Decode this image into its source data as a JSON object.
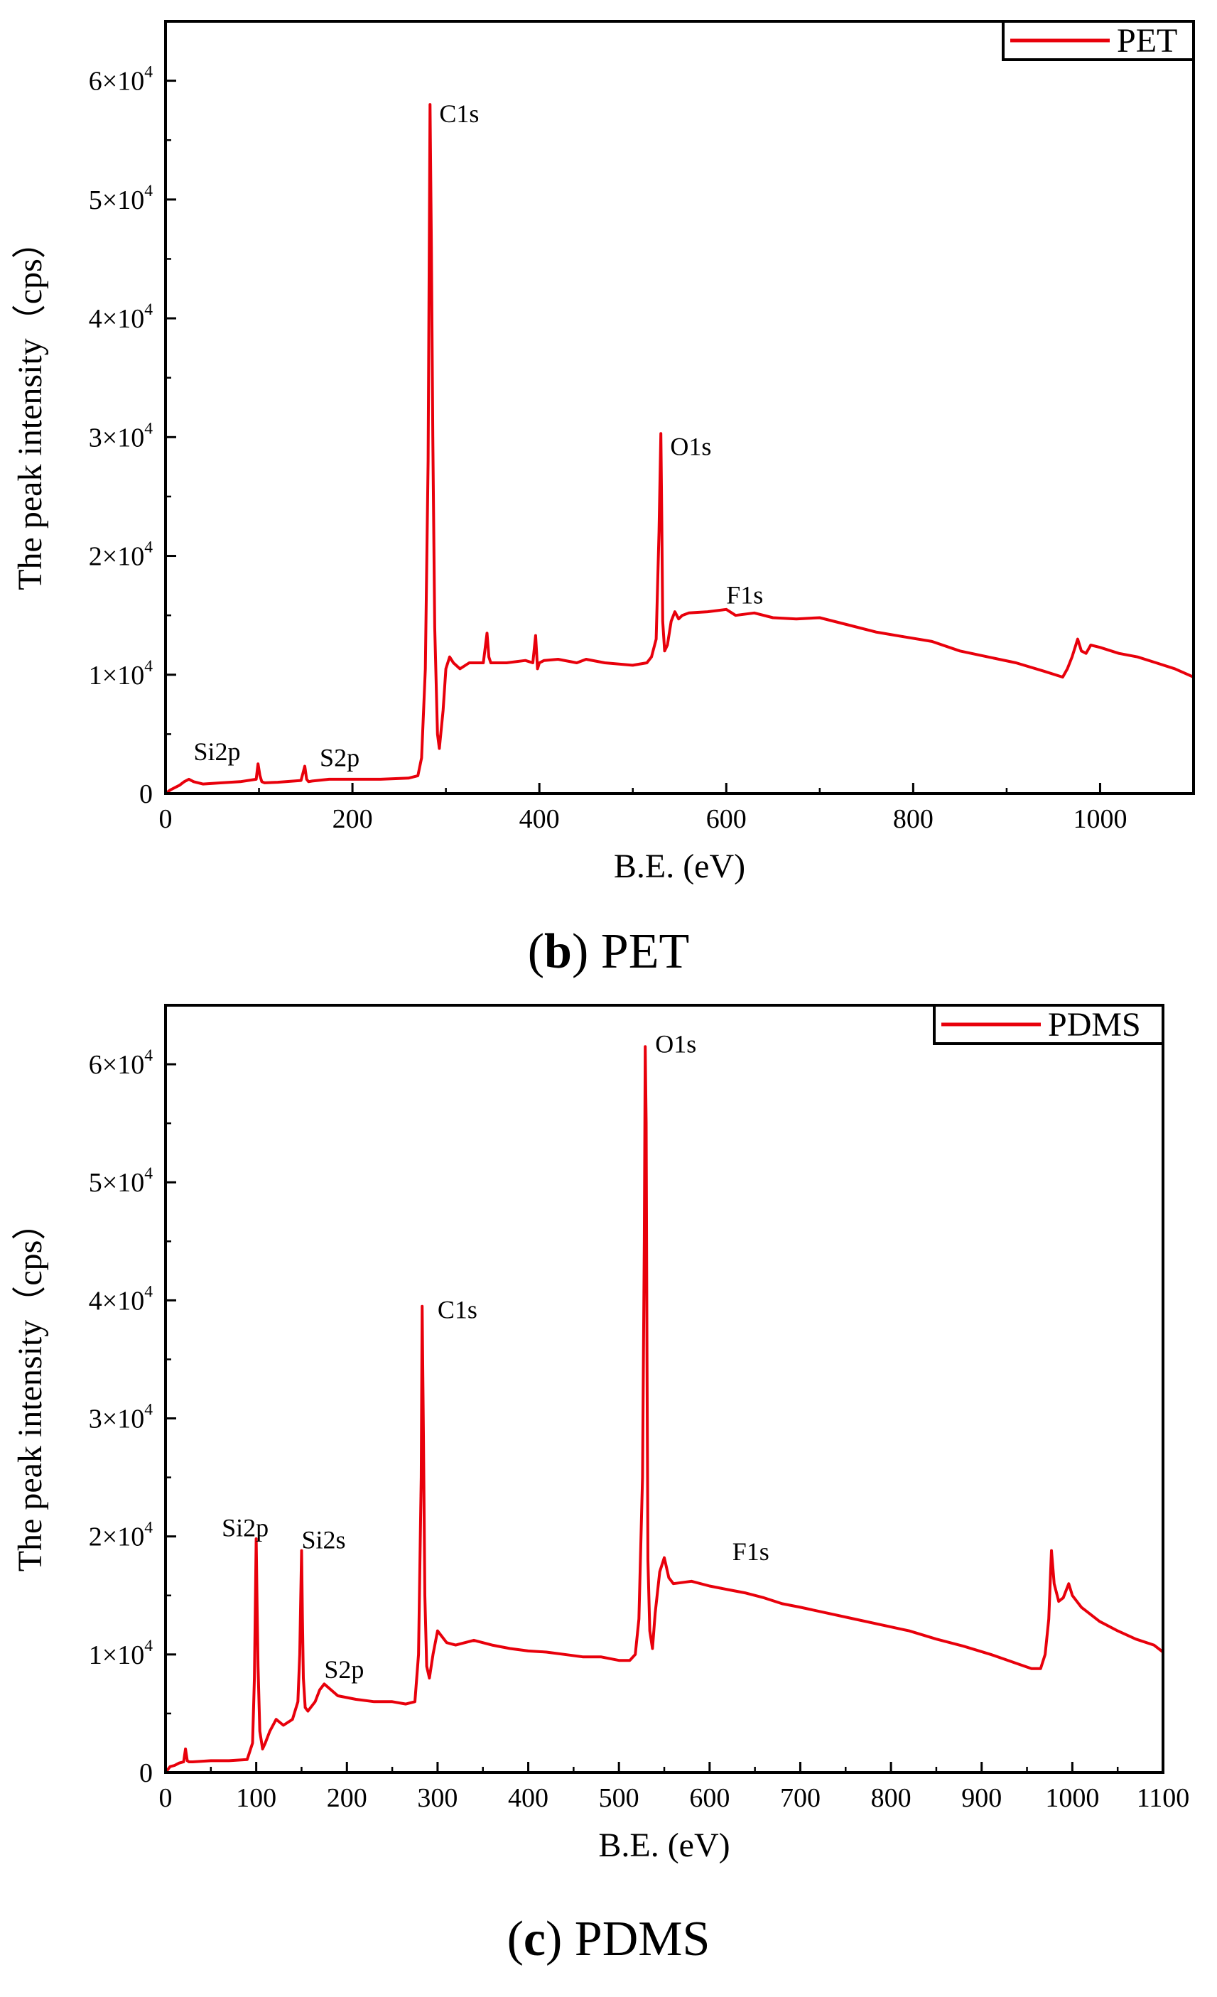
{
  "chart_data": [
    {
      "type": "line",
      "title": "",
      "xlabel": "B.E. (eV)",
      "ylabel": "The peak intensity（cps）",
      "xlim": [
        0,
        1100
      ],
      "ylim": [
        0,
        65000
      ],
      "xticks": [
        0,
        200,
        400,
        600,
        800,
        1000
      ],
      "xtick_labels": [
        "0",
        "200",
        "400",
        "600",
        "800",
        "1000"
      ],
      "yticks": [
        0,
        10000,
        20000,
        30000,
        40000,
        50000,
        60000
      ],
      "ytick_labels": [
        {
          "mant": "0",
          "exp": ""
        },
        {
          "mant": "1×10",
          "exp": "4"
        },
        {
          "mant": "2×10",
          "exp": "4"
        },
        {
          "mant": "3×10",
          "exp": "4"
        },
        {
          "mant": "4×10",
          "exp": "4"
        },
        {
          "mant": "5×10",
          "exp": "4"
        },
        {
          "mant": "6×10",
          "exp": "4"
        }
      ],
      "legend": {
        "label": "PET",
        "position": "top-right"
      },
      "color": "#e8000b",
      "caption": {
        "letter": "b",
        "text": "PET"
      },
      "annotations": [
        {
          "text": "C1s",
          "x": 293,
          "y": 56500
        },
        {
          "text": "O1s",
          "x": 540,
          "y": 28500
        },
        {
          "text": "F1s",
          "x": 600,
          "y": 16000
        },
        {
          "text": "Si2p",
          "x": 30,
          "y": 2800
        },
        {
          "text": "S2p",
          "x": 165,
          "y": 2300
        }
      ],
      "series": [
        {
          "name": "PET",
          "x": [
            0,
            5,
            15,
            20,
            25,
            30,
            40,
            60,
            80,
            97,
            99,
            101,
            103,
            106,
            120,
            145,
            149,
            151,
            153,
            157,
            175,
            200,
            230,
            260,
            270,
            274,
            278,
            281,
            283,
            284.5,
            286,
            288,
            291,
            293,
            297,
            300,
            304,
            308,
            315,
            325,
            340,
            344,
            346,
            348,
            352,
            365,
            385,
            393,
            396,
            398,
            400,
            405,
            420,
            440,
            450,
            470,
            500,
            515,
            520,
            525,
            528,
            530,
            531,
            532,
            534,
            537,
            541,
            545,
            549,
            553,
            560,
            580,
            600,
            610,
            630,
            650,
            675,
            700,
            730,
            760,
            790,
            820,
            850,
            880,
            910,
            940,
            960,
            965,
            970,
            976,
            980,
            985,
            990,
            1000,
            1020,
            1040,
            1060,
            1080,
            1100
          ],
          "y": [
            0,
            300,
            700,
            1000,
            1200,
            1000,
            800,
            900,
            1000,
            1200,
            2500,
            1500,
            1000,
            900,
            950,
            1100,
            2300,
            1200,
            1000,
            1050,
            1200,
            1200,
            1200,
            1300,
            1500,
            3000,
            10500,
            28000,
            58000,
            46000,
            30000,
            14000,
            5000,
            3800,
            7000,
            10500,
            11500,
            11000,
            10500,
            11000,
            11000,
            13500,
            11500,
            11000,
            11000,
            11000,
            11200,
            11000,
            13300,
            10500,
            11000,
            11200,
            11300,
            11000,
            11300,
            11000,
            10800,
            11000,
            11500,
            13000,
            22000,
            30300,
            23000,
            14500,
            12000,
            12500,
            14500,
            15300,
            14700,
            15000,
            15200,
            15300,
            15500,
            15000,
            15200,
            14800,
            14700,
            14800,
            14200,
            13600,
            13200,
            12800,
            12000,
            11500,
            11000,
            10300,
            9800,
            10500,
            11500,
            13000,
            12000,
            11800,
            12500,
            12300,
            11800,
            11500,
            11000,
            10500,
            9800
          ]
        }
      ]
    },
    {
      "type": "line",
      "title": "",
      "xlabel": "B.E. (eV)",
      "ylabel": "The peak intensity（cps）",
      "xlim": [
        0,
        1100
      ],
      "ylim": [
        0,
        65000
      ],
      "xticks": [
        0,
        100,
        200,
        300,
        400,
        500,
        600,
        700,
        800,
        900,
        1000,
        1100
      ],
      "xtick_labels": [
        "0",
        "100",
        "200",
        "300",
        "400",
        "500",
        "600",
        "700",
        "800",
        "900",
        "1000",
        "1100"
      ],
      "yticks": [
        0,
        10000,
        20000,
        30000,
        40000,
        50000,
        60000
      ],
      "ytick_labels": [
        {
          "mant": "0",
          "exp": ""
        },
        {
          "mant": "1×10",
          "exp": "4"
        },
        {
          "mant": "2×10",
          "exp": "4"
        },
        {
          "mant": "3×10",
          "exp": "4"
        },
        {
          "mant": "4×10",
          "exp": "4"
        },
        {
          "mant": "5×10",
          "exp": "4"
        },
        {
          "mant": "6×10",
          "exp": "4"
        }
      ],
      "legend": {
        "label": "PDMS",
        "position": "top-right"
      },
      "color": "#e8000b",
      "caption": {
        "letter": "c",
        "text": "PDMS"
      },
      "annotations": [
        {
          "text": "O1s",
          "x": 540,
          "y": 61000
        },
        {
          "text": "C1s",
          "x": 300,
          "y": 38500
        },
        {
          "text": "Si2p",
          "x": 62,
          "y": 20000
        },
        {
          "text": "Si2s",
          "x": 150,
          "y": 19000
        },
        {
          "text": "S2p",
          "x": 175,
          "y": 8000
        },
        {
          "text": "F1s",
          "x": 625,
          "y": 18000
        }
      ],
      "series": [
        {
          "name": "PDMS",
          "x": [
            0,
            5,
            10,
            15,
            20,
            22,
            24,
            26,
            30,
            50,
            70,
            90,
            96,
            98,
            100,
            101,
            102,
            104,
            107,
            110,
            115,
            122,
            130,
            140,
            146,
            148,
            150,
            151,
            152,
            154,
            157,
            160,
            165,
            170,
            175,
            190,
            210,
            230,
            250,
            265,
            275,
            279,
            282,
            283,
            284.5,
            286,
            288,
            291,
            295,
            300,
            310,
            320,
            340,
            360,
            380,
            400,
            420,
            440,
            460,
            480,
            500,
            512,
            518,
            522,
            526,
            528,
            529,
            530,
            531,
            532,
            534,
            537,
            540,
            545,
            550,
            555,
            560,
            580,
            600,
            620,
            640,
            660,
            680,
            700,
            730,
            760,
            790,
            820,
            850,
            880,
            910,
            940,
            955,
            965,
            970,
            974,
            977,
            980,
            985,
            990,
            996,
            1000,
            1005,
            1010,
            1030,
            1050,
            1070,
            1090,
            1100
          ],
          "y": [
            0,
            500,
            600,
            800,
            900,
            2000,
            1000,
            900,
            900,
            1000,
            1000,
            1100,
            2500,
            8000,
            19800,
            14000,
            9000,
            3500,
            2000,
            2500,
            3500,
            4500,
            4000,
            4500,
            6000,
            10000,
            18800,
            13000,
            8000,
            5500,
            5200,
            5500,
            6000,
            7000,
            7500,
            6500,
            6200,
            6000,
            6000,
            5800,
            6000,
            10000,
            25000,
            39500,
            28000,
            15000,
            9000,
            8000,
            10000,
            12000,
            11000,
            10800,
            11200,
            10800,
            10500,
            10300,
            10200,
            10000,
            9800,
            9800,
            9500,
            9500,
            10000,
            13000,
            25000,
            45000,
            61500,
            55000,
            35000,
            18000,
            12000,
            10500,
            13500,
            17000,
            18200,
            16500,
            16000,
            16200,
            15800,
            15500,
            15200,
            14800,
            14300,
            14000,
            13500,
            13000,
            12500,
            12000,
            11300,
            10700,
            10000,
            9200,
            8800,
            8800,
            10000,
            13000,
            18800,
            16000,
            14500,
            14800,
            16000,
            15000,
            14500,
            14000,
            12800,
            12000,
            11300,
            10800,
            10200
          ]
        }
      ]
    }
  ]
}
